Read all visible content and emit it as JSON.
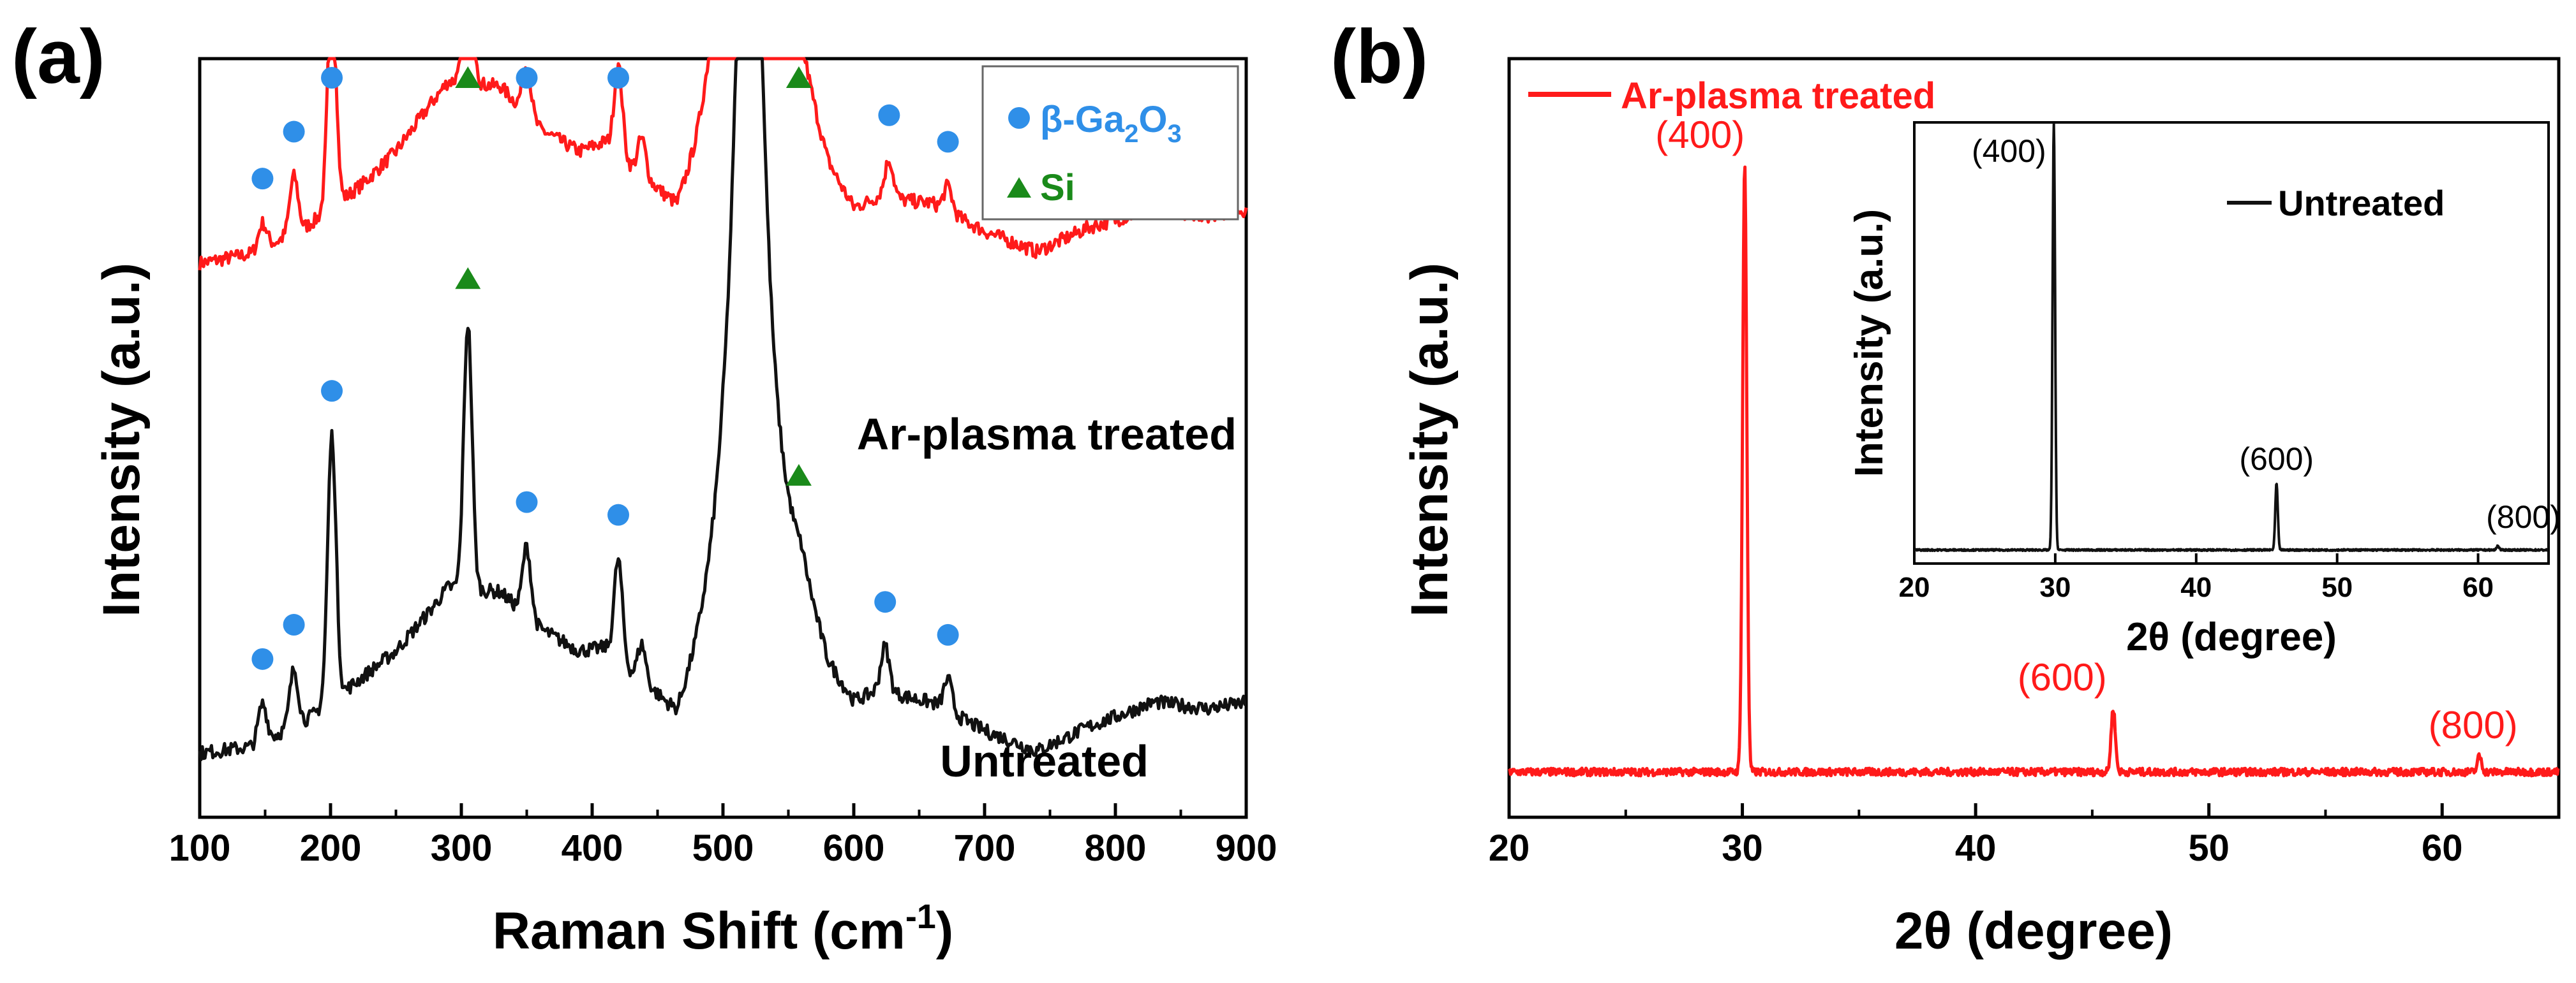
{
  "figure": {
    "panel_a_label": "(a)",
    "panel_b_label": "(b)"
  },
  "colors": {
    "treated": "#ff1a1a",
    "untreated": "#111111",
    "ga2o3_marker": "#2f8fe8",
    "si_marker": "#1a8a1a",
    "axis": "#000000"
  },
  "chart_data": [
    {
      "panel": "a",
      "type": "line",
      "title": "",
      "xlabel": "Raman Shift (cm",
      "xlabel_sup": "-1",
      "xlabel_close": ")",
      "ylabel": "Intensity (a.u.)",
      "xlim": [
        100,
        900
      ],
      "xticks": [
        100,
        200,
        300,
        400,
        500,
        600,
        700,
        800,
        900
      ],
      "yticks_shown": false,
      "legend": {
        "position": "top-right",
        "entries": [
          {
            "marker": "circle",
            "label_prefix": "β-Ga",
            "sub1": "2",
            "label_mid": "O",
            "sub2": "3"
          },
          {
            "marker": "triangle",
            "label": "Si"
          }
        ]
      },
      "baseline_peak_shape": {
        "x": 520,
        "gamma": 12,
        "amp_over_baseline": 1.0,
        "note": "Si peak clipped at top of frame"
      },
      "series": [
        {
          "name": "Ar-plasma treated",
          "label": "Ar-plasma treated",
          "color_key": "treated",
          "baseline": [
            [
              100,
              0.775
            ],
            [
              140,
              0.79
            ],
            [
              180,
              0.83
            ],
            [
              200,
              0.86
            ],
            [
              225,
              0.9
            ],
            [
              250,
              0.95
            ],
            [
              275,
              1.02
            ],
            [
              290,
              1.06
            ],
            [
              330,
              1.05
            ],
            [
              360,
              0.98
            ],
            [
              390,
              0.94
            ],
            [
              410,
              0.95
            ],
            [
              450,
              0.85
            ],
            [
              465,
              0.8
            ],
            [
              480,
              0.85
            ],
            [
              500,
              0.95
            ],
            [
              560,
              1.0
            ],
            [
              580,
              0.88
            ],
            [
              600,
              0.83
            ],
            [
              620,
              0.86
            ],
            [
              660,
              0.86
            ],
            [
              700,
              0.82
            ],
            [
              740,
              0.79
            ],
            [
              780,
              0.83
            ],
            [
              830,
              0.86
            ],
            [
              870,
              0.85
            ],
            [
              900,
              0.86
            ]
          ],
          "peaks": [
            {
              "x": 148,
              "height": 0.04
            },
            {
              "x": 172,
              "height": 0.09
            },
            {
              "x": 201,
              "height": 0.35
            },
            {
              "x": 305,
              "height": 0.42
            },
            {
              "x": 350,
              "height": 0.08
            },
            {
              "x": 420,
              "height": 0.14
            },
            {
              "x": 438,
              "height": 0.06
            },
            {
              "x": 627,
              "height": 0.06
            },
            {
              "x": 672,
              "height": 0.04
            }
          ]
        },
        {
          "name": "Untreated",
          "label": "Untreated",
          "color_key": "untreated",
          "baseline": [
            [
              100,
              0.0
            ],
            [
              140,
              0.01
            ],
            [
              180,
              0.05
            ],
            [
              200,
              0.08
            ],
            [
              225,
              0.12
            ],
            [
              250,
              0.16
            ],
            [
              275,
              0.22
            ],
            [
              290,
              0.26
            ],
            [
              330,
              0.25
            ],
            [
              360,
              0.19
            ],
            [
              390,
              0.15
            ],
            [
              410,
              0.15
            ],
            [
              450,
              0.05
            ],
            [
              465,
              0.0
            ],
            [
              480,
              0.06
            ],
            [
              500,
              0.15
            ],
            [
              560,
              0.2
            ],
            [
              580,
              0.09
            ],
            [
              600,
              0.05
            ],
            [
              620,
              0.08
            ],
            [
              660,
              0.07
            ],
            [
              700,
              0.03
            ],
            [
              740,
              0.0
            ],
            [
              780,
              0.04
            ],
            [
              830,
              0.08
            ],
            [
              870,
              0.07
            ],
            [
              900,
              0.08
            ]
          ],
          "peaks": [
            {
              "x": 148,
              "height": 0.06
            },
            {
              "x": 172,
              "height": 0.09
            },
            {
              "x": 201,
              "height": 0.42
            },
            {
              "x": 305,
              "height": 0.42
            },
            {
              "x": 350,
              "height": 0.11
            },
            {
              "x": 420,
              "height": 0.16
            },
            {
              "x": 438,
              "height": 0.06
            },
            {
              "x": 624,
              "height": 0.07
            },
            {
              "x": 672,
              "height": 0.05
            }
          ]
        }
      ],
      "markers": [
        {
          "series": "Ar-plasma treated",
          "shape": "circle",
          "x": 148
        },
        {
          "series": "Ar-plasma treated",
          "shape": "circle",
          "x": 172
        },
        {
          "series": "Ar-plasma treated",
          "shape": "circle",
          "x": 201
        },
        {
          "series": "Ar-plasma treated",
          "shape": "triangle",
          "x": 305
        },
        {
          "series": "Ar-plasma treated",
          "shape": "circle",
          "x": 350
        },
        {
          "series": "Ar-plasma treated",
          "shape": "circle",
          "x": 420
        },
        {
          "series": "Ar-plasma treated",
          "shape": "triangle",
          "x": 558
        },
        {
          "series": "Ar-plasma treated",
          "shape": "circle",
          "x": 627
        },
        {
          "series": "Ar-plasma treated",
          "shape": "circle",
          "x": 672
        },
        {
          "series": "Untreated",
          "shape": "circle",
          "x": 148
        },
        {
          "series": "Untreated",
          "shape": "circle",
          "x": 172
        },
        {
          "series": "Untreated",
          "shape": "circle",
          "x": 201
        },
        {
          "series": "Untreated",
          "shape": "triangle",
          "x": 305
        },
        {
          "series": "Untreated",
          "shape": "circle",
          "x": 350
        },
        {
          "series": "Untreated",
          "shape": "circle",
          "x": 420
        },
        {
          "series": "Untreated",
          "shape": "triangle",
          "x": 558
        },
        {
          "series": "Untreated",
          "shape": "circle",
          "x": 624
        },
        {
          "series": "Untreated",
          "shape": "circle",
          "x": 672
        }
      ]
    },
    {
      "panel": "b",
      "type": "line",
      "title": "",
      "xlabel": "2θ (degree)",
      "ylabel": "Intensity (a.u.)",
      "xlim": [
        20,
        65
      ],
      "xticks": [
        20,
        30,
        40,
        50,
        60
      ],
      "yticks_shown": false,
      "legend": {
        "position": "top-left",
        "entries": [
          {
            "label": "Ar-plasma treated",
            "color_key": "treated"
          }
        ]
      },
      "series": [
        {
          "name": "Ar-plasma treated",
          "color_key": "treated",
          "baseline": 0.015,
          "peaks": [
            {
              "x": 30.1,
              "height": 0.95,
              "label": "(400)"
            },
            {
              "x": 45.9,
              "height": 0.1,
              "label": "(600)"
            },
            {
              "x": 61.6,
              "height": 0.025,
              "label": "(800)"
            }
          ]
        }
      ],
      "inset": {
        "position": "top-right",
        "xlabel": "2θ (degree)",
        "ylabel": "Intensity (a.u.)",
        "xlim": [
          20,
          65
        ],
        "xticks": [
          20,
          30,
          40,
          50,
          60
        ],
        "legend": {
          "entries": [
            {
              "label": "Untreated",
              "color_key": "untreated"
            }
          ]
        },
        "series": [
          {
            "name": "Untreated",
            "color_key": "untreated",
            "baseline": 0.005,
            "peaks": [
              {
                "x": 29.9,
                "height": 1.03,
                "label": "(400)"
              },
              {
                "x": 45.7,
                "height": 0.16,
                "label": "(600)"
              },
              {
                "x": 61.4,
                "height": 0.01,
                "label": "(800)"
              }
            ]
          }
        ]
      }
    }
  ]
}
